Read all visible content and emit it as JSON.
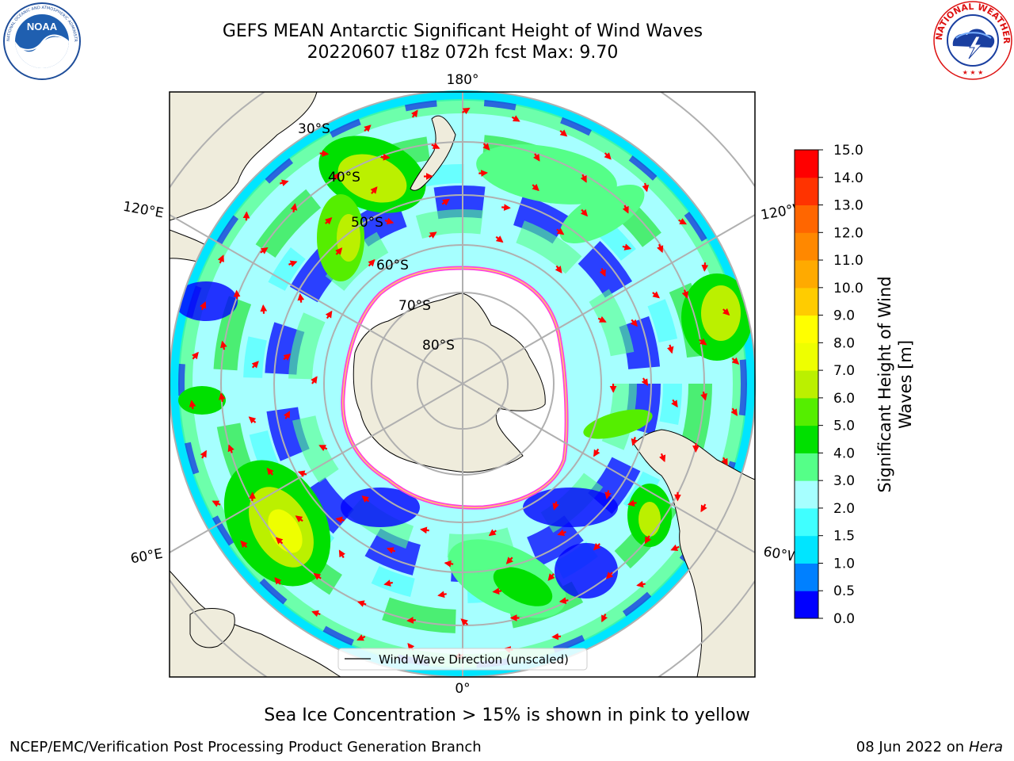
{
  "header": {
    "title_line1": "GEFS MEAN Antarctic Significant Height of Wind Waves",
    "title_line2": "20220607 t18z 072h fcst   Max: 9.70"
  },
  "logos": {
    "left": {
      "icon": "noaa-logo",
      "text": "NOAA",
      "ring_text": "NATIONAL OCEANIC AND ATMOSPHERIC ADMINISTRATION · U.S. DEPARTMENT OF COMMERCE"
    },
    "right": {
      "icon": "national-weather-service-logo",
      "ring_text": "NATIONAL WEATHER SERVICE"
    }
  },
  "map": {
    "projection": "south-polar-stereographic",
    "longitude_labels": {
      "top": "180°",
      "upper_left": "120°E",
      "upper_right": "120°W",
      "lower_left": "60°E",
      "lower_right": "60°W",
      "bottom": "0°"
    },
    "latitude_labels": [
      "30°S",
      "40°S",
      "50°S",
      "60°S",
      "70°S",
      "80°S"
    ],
    "legend_label": "Wind Wave Direction (unscaled)",
    "arrow_color": "#ff0000",
    "land_color": "#efecdc",
    "ice_edge_colors": [
      "#ff44dd",
      "#ffcc66"
    ]
  },
  "colorbar": {
    "label_line1": "Significant Height of Wind",
    "label_line2": "Waves [m]",
    "ticks": [
      "0.0",
      "0.5",
      "1.0",
      "1.5",
      "2.0",
      "3.0",
      "4.0",
      "5.0",
      "6.0",
      "7.0",
      "8.0",
      "9.0",
      "10.0",
      "11.0",
      "12.0",
      "13.0",
      "14.0",
      "15.0"
    ],
    "colors": [
      "#0000ff",
      "#0080ff",
      "#00e5ff",
      "#40ffff",
      "#a6ffff",
      "#55ff88",
      "#00e000",
      "#55ee00",
      "#bbf000",
      "#eeff00",
      "#ffff00",
      "#ffcc00",
      "#ffaa00",
      "#ff8800",
      "#ff6600",
      "#ff3300",
      "#ff0000"
    ]
  },
  "notes": {
    "sea_ice": "Sea Ice Concentration > 15% is shown in pink to yellow"
  },
  "footer": {
    "left": "NCEP/EMC/Verification Post Processing Product Generation Branch",
    "right_date": "08 Jun 2022 on",
    "right_machine": "Hera"
  }
}
